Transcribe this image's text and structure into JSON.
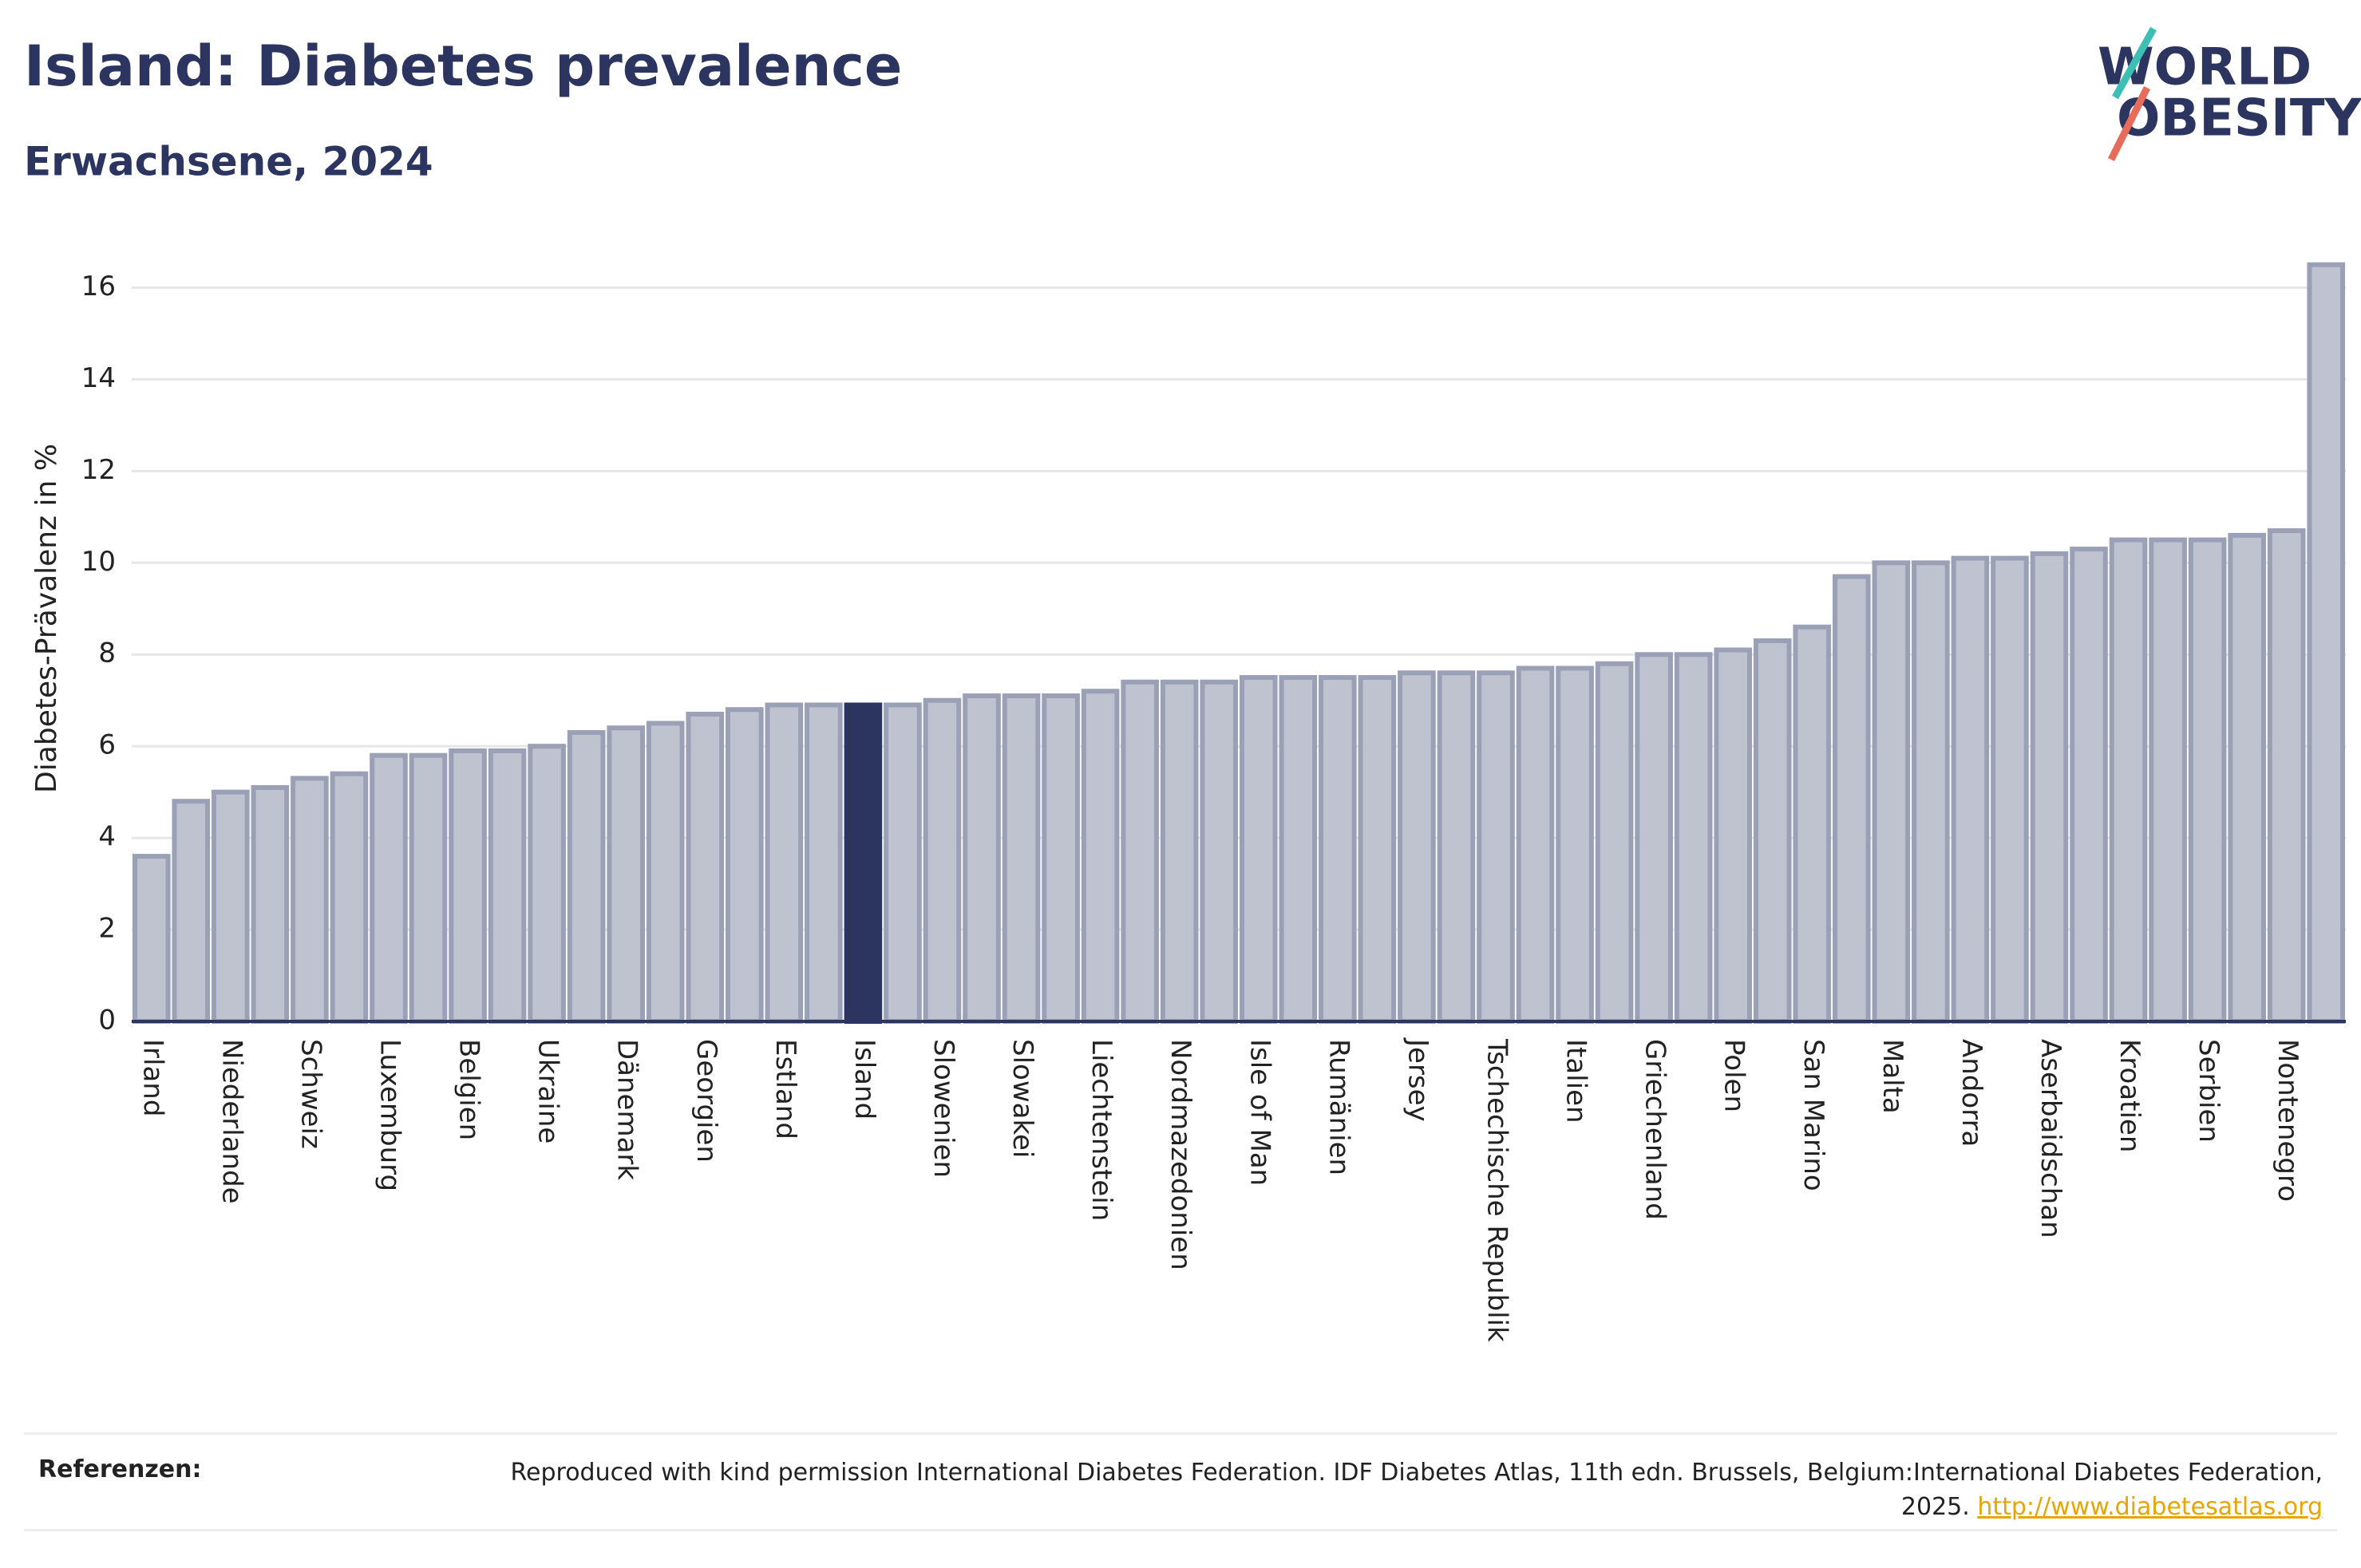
{
  "chart_data": {
    "type": "bar",
    "title": "Island: Diabetes prevalence",
    "subtitle": "Erwachsene, 2024",
    "y_label": "Diabetes-Prävalenz in %",
    "categories": [
      "Irland",
      null,
      "Niederlande",
      null,
      "Schweiz",
      null,
      "Luxemburg",
      null,
      "Belgien",
      null,
      "Ukraine",
      null,
      "Dänemark",
      null,
      "Georgien",
      null,
      "Estland",
      null,
      "Island",
      null,
      "Slowenien",
      null,
      "Slowakei",
      null,
      "Liechtenstein",
      null,
      "Nordmazedonien",
      null,
      "Isle of Man",
      null,
      "Rumänien",
      null,
      "Jersey",
      null,
      "Tschechische Republik",
      null,
      "Italien",
      null,
      "Griechenland",
      null,
      "Polen",
      null,
      "San Marino",
      null,
      "Malta",
      null,
      "Andorra",
      null,
      "Aserbaidschan",
      null,
      "Kroatien",
      null,
      "Serbien",
      null,
      "Montenegro",
      null
    ],
    "values": [
      3.6,
      4.8,
      5.0,
      5.1,
      5.3,
      5.4,
      5.8,
      5.8,
      5.9,
      5.9,
      6.0,
      6.3,
      6.4,
      6.5,
      6.7,
      6.8,
      6.9,
      6.9,
      6.9,
      6.9,
      7.0,
      7.1,
      7.1,
      7.1,
      7.2,
      7.4,
      7.4,
      7.4,
      7.5,
      7.5,
      7.5,
      7.5,
      7.6,
      7.6,
      7.6,
      7.7,
      7.7,
      7.8,
      8.0,
      8.0,
      8.1,
      8.3,
      8.6,
      9.7,
      10.0,
      10.0,
      10.1,
      10.1,
      10.2,
      10.3,
      10.5,
      10.5,
      10.5,
      10.6,
      10.7,
      16.5
    ],
    "color": "#bfc3d0",
    "highlight": "Island",
    "highlight_color": "#2b3560",
    "ylim": [
      0,
      17
    ],
    "yticks": [
      0,
      2,
      4,
      6,
      8,
      10,
      12,
      14,
      16
    ],
    "grid": true
  },
  "logo": {
    "line1": "WORLD",
    "line2": "OBESITY"
  },
  "footer": {
    "label": "Referenzen:",
    "text": "Reproduced with kind permission International Diabetes Federation. IDF Diabetes Atlas, 11th edn. Brussels, Belgium:International Diabetes Federation, 2025.",
    "link": "http://www.diabetesatlas.org"
  }
}
